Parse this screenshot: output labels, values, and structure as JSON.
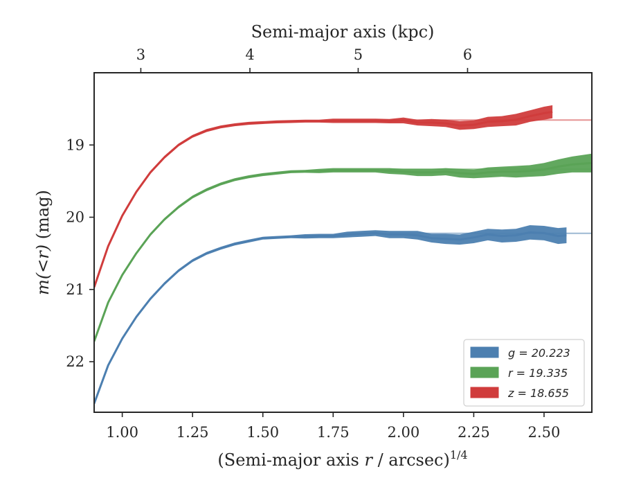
{
  "chart_data": {
    "type": "line",
    "xlabel": "(Semi-major axis r / arcsec)",
    "xlabel_exponent": "1/4",
    "x2label": "Semi-major axis (kpc)",
    "ylabel": "m(<r) (mag)",
    "xlim": [
      0.9,
      2.67
    ],
    "ylim": [
      22.7,
      18.0
    ],
    "y_inverted": true,
    "xticks": [
      1.0,
      1.25,
      1.5,
      1.75,
      2.0,
      2.25,
      2.5
    ],
    "xtick_labels": [
      "1.00",
      "1.25",
      "1.50",
      "1.75",
      "2.00",
      "2.25",
      "2.50"
    ],
    "yticks": [
      19,
      20,
      21,
      22
    ],
    "ytick_labels": [
      "19",
      "20",
      "21",
      "22"
    ],
    "x2ticks": [
      3,
      4,
      5,
      6
    ],
    "x2tick_labels": [
      "3",
      "4",
      "5",
      "6"
    ],
    "x2_positions": [
      1.066,
      1.454,
      1.839,
      2.228
    ],
    "legend_position": "lower-right",
    "series": [
      {
        "name": "g = 20.223",
        "band": "g",
        "total": 20.223,
        "color": "#4c7fb0",
        "x": [
          0.9,
          0.95,
          1.0,
          1.05,
          1.1,
          1.15,
          1.2,
          1.25,
          1.3,
          1.35,
          1.4,
          1.45,
          1.5,
          1.55,
          1.6,
          1.65,
          1.7,
          1.75,
          1.8,
          1.85,
          1.9,
          1.95,
          2.0,
          2.05,
          2.1,
          2.15,
          2.2,
          2.25,
          2.3,
          2.35,
          2.4,
          2.45,
          2.5,
          2.55,
          2.58
        ],
        "y": [
          22.58,
          22.05,
          21.68,
          21.38,
          21.13,
          20.92,
          20.74,
          20.6,
          20.5,
          20.43,
          20.37,
          20.33,
          20.29,
          20.28,
          20.27,
          20.265,
          20.26,
          20.26,
          20.24,
          20.23,
          20.22,
          20.24,
          20.24,
          20.25,
          20.29,
          20.3,
          20.31,
          20.28,
          20.24,
          20.26,
          20.25,
          20.21,
          20.22,
          20.26,
          20.25
        ],
        "band_width": [
          0.02,
          0.02,
          0.02,
          0.02,
          0.02,
          0.02,
          0.02,
          0.02,
          0.02,
          0.02,
          0.02,
          0.02,
          0.02,
          0.02,
          0.02,
          0.03,
          0.03,
          0.03,
          0.04,
          0.04,
          0.04,
          0.05,
          0.05,
          0.06,
          0.06,
          0.07,
          0.07,
          0.08,
          0.08,
          0.09,
          0.09,
          0.1,
          0.1,
          0.11,
          0.11
        ]
      },
      {
        "name": "r = 19.335",
        "band": "r",
        "total": 19.335,
        "color": "#5aa356",
        "x": [
          0.9,
          0.95,
          1.0,
          1.05,
          1.1,
          1.15,
          1.2,
          1.25,
          1.3,
          1.35,
          1.4,
          1.45,
          1.5,
          1.55,
          1.6,
          1.65,
          1.7,
          1.75,
          1.8,
          1.85,
          1.9,
          1.95,
          2.0,
          2.05,
          2.1,
          2.15,
          2.2,
          2.25,
          2.3,
          2.35,
          2.4,
          2.45,
          2.5,
          2.55,
          2.6,
          2.67
        ],
        "y": [
          21.72,
          21.18,
          20.8,
          20.5,
          20.24,
          20.03,
          19.86,
          19.72,
          19.62,
          19.54,
          19.48,
          19.44,
          19.41,
          19.39,
          19.37,
          19.365,
          19.36,
          19.35,
          19.35,
          19.35,
          19.35,
          19.36,
          19.37,
          19.38,
          19.38,
          19.37,
          19.39,
          19.4,
          19.38,
          19.37,
          19.37,
          19.36,
          19.34,
          19.3,
          19.27,
          19.25
        ],
        "band_width": [
          0.02,
          0.02,
          0.02,
          0.02,
          0.02,
          0.02,
          0.02,
          0.02,
          0.02,
          0.02,
          0.02,
          0.02,
          0.02,
          0.02,
          0.02,
          0.02,
          0.03,
          0.03,
          0.03,
          0.03,
          0.03,
          0.04,
          0.04,
          0.05,
          0.05,
          0.05,
          0.06,
          0.06,
          0.07,
          0.07,
          0.08,
          0.08,
          0.09,
          0.1,
          0.11,
          0.13
        ]
      },
      {
        "name": "z = 18.655",
        "band": "z",
        "total": 18.655,
        "color": "#d03c3c",
        "x": [
          0.9,
          0.95,
          1.0,
          1.05,
          1.1,
          1.15,
          1.2,
          1.25,
          1.3,
          1.35,
          1.4,
          1.45,
          1.5,
          1.55,
          1.6,
          1.65,
          1.7,
          1.75,
          1.8,
          1.85,
          1.9,
          1.95,
          2.0,
          2.05,
          2.1,
          2.15,
          2.2,
          2.25,
          2.3,
          2.35,
          2.4,
          2.45,
          2.5,
          2.53
        ],
        "y": [
          20.97,
          20.4,
          19.98,
          19.65,
          19.38,
          19.17,
          19.0,
          18.88,
          18.8,
          18.75,
          18.72,
          18.7,
          18.69,
          18.68,
          18.675,
          18.67,
          18.67,
          18.665,
          18.665,
          18.665,
          18.665,
          18.67,
          18.66,
          18.69,
          18.69,
          18.7,
          18.73,
          18.72,
          18.68,
          18.67,
          18.65,
          18.6,
          18.56,
          18.54
        ],
        "band_width": [
          0.02,
          0.02,
          0.02,
          0.02,
          0.02,
          0.02,
          0.02,
          0.02,
          0.02,
          0.02,
          0.02,
          0.02,
          0.02,
          0.02,
          0.02,
          0.02,
          0.02,
          0.03,
          0.03,
          0.03,
          0.03,
          0.03,
          0.04,
          0.04,
          0.05,
          0.05,
          0.06,
          0.06,
          0.07,
          0.07,
          0.08,
          0.08,
          0.09,
          0.09
        ]
      }
    ]
  },
  "legend": {
    "items": [
      {
        "label": "g = 20.223",
        "color": "#4c7fb0"
      },
      {
        "label": "r = 19.335",
        "color": "#5aa356"
      },
      {
        "label": "z = 18.655",
        "color": "#d03c3c"
      }
    ]
  }
}
